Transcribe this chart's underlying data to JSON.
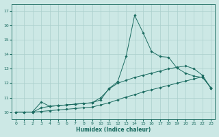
{
  "xlabel": "Humidex (Indice chaleur)",
  "bg_color": "#cce8e5",
  "line_color": "#1a6b60",
  "grid_color": "#aacfcc",
  "xlim": [
    -0.5,
    23.5
  ],
  "ylim": [
    9.5,
    17.5
  ],
  "xticks": [
    0,
    1,
    2,
    3,
    4,
    5,
    6,
    7,
    8,
    9,
    10,
    11,
    12,
    13,
    14,
    15,
    16,
    17,
    18,
    19,
    20,
    21,
    22,
    23
  ],
  "yticks": [
    10,
    11,
    12,
    13,
    14,
    15,
    16,
    17
  ],
  "lines": [
    {
      "x": [
        0,
        1,
        2,
        3,
        4,
        5,
        6,
        7,
        8,
        9,
        10,
        11,
        12,
        13,
        14,
        15,
        16,
        17,
        18,
        19,
        20,
        21,
        22,
        23
      ],
      "y": [
        10.0,
        10.0,
        10.0,
        10.05,
        10.1,
        10.15,
        10.2,
        10.25,
        10.3,
        10.35,
        10.5,
        10.65,
        10.85,
        11.05,
        11.2,
        11.4,
        11.55,
        11.7,
        11.85,
        12.0,
        12.15,
        12.3,
        12.45,
        11.65
      ]
    },
    {
      "x": [
        0,
        1,
        2,
        3,
        4,
        5,
        6,
        7,
        8,
        9,
        10,
        11,
        12,
        13,
        14,
        15,
        16,
        17,
        18,
        19,
        20,
        21,
        22,
        23
      ],
      "y": [
        10.0,
        10.0,
        10.0,
        10.3,
        10.4,
        10.45,
        10.5,
        10.55,
        10.6,
        10.65,
        11.0,
        11.6,
        12.0,
        12.2,
        12.4,
        12.55,
        12.7,
        12.85,
        13.0,
        13.1,
        13.2,
        13.0,
        12.55,
        11.65
      ]
    },
    {
      "x": [
        2,
        3,
        4,
        5,
        6,
        7,
        8,
        9,
        10,
        11,
        12,
        13,
        14,
        15,
        16,
        17,
        18,
        19,
        20,
        21,
        22,
        23
      ],
      "y": [
        10.05,
        10.7,
        10.4,
        10.45,
        10.5,
        10.55,
        10.6,
        10.65,
        10.85,
        11.65,
        12.1,
        13.85,
        16.7,
        15.5,
        14.2,
        13.85,
        13.8,
        13.05,
        12.7,
        12.5,
        12.4,
        11.7
      ]
    }
  ]
}
